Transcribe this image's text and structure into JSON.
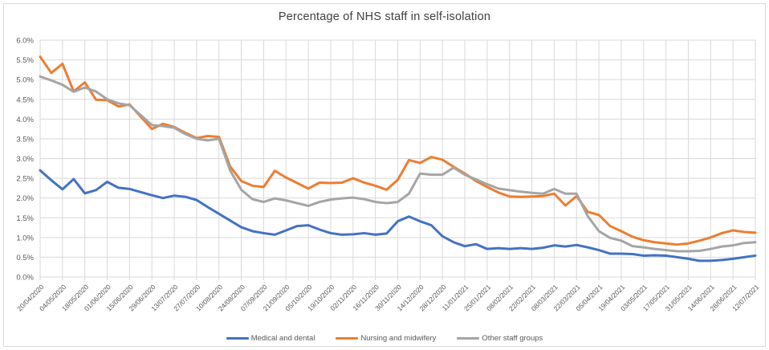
{
  "title": "Percentage of NHS staff in self-isolation",
  "colors": {
    "text": "#595959",
    "title_text": "#404040",
    "grid": "#D9D9D9",
    "frame_border": "#D9D9D9",
    "background": "#FFFFFF"
  },
  "chart_data": {
    "type": "line",
    "title": "Percentage of NHS staff in self-isolation",
    "xlabel": "",
    "ylabel": "",
    "ylim": [
      0,
      6
    ],
    "y_tick_step": 0.5,
    "y_tick_suffix": "%",
    "grid": true,
    "legend_position": "bottom",
    "n_points": 65,
    "points_per_labeled_tick": 2,
    "x_tick_labels": [
      "20/04/2020",
      "04/05/2020",
      "18/05/2020",
      "01/06/2020",
      "15/06/2020",
      "29/06/2020",
      "13/07/2020",
      "27/07/2020",
      "10/08/2020",
      "24/08/2020",
      "07/09/2020",
      "21/09/2020",
      "05/10/2020",
      "19/10/2020",
      "02/11/2020",
      "16/11/2020",
      "30/11/2020",
      "14/12/2020",
      "28/12/2020",
      "11/01/2021",
      "25/01/2021",
      "08/02/2021",
      "22/02/2021",
      "08/03/2021",
      "22/03/2021",
      "05/04/2021",
      "19/04/2021",
      "03/05/2021",
      "17/05/2021",
      "31/05/2021",
      "14/06/2021",
      "28/06/2021",
      "12/07/2021"
    ],
    "series": [
      {
        "name": "Medical and dental",
        "color": "#4472C4",
        "values": [
          2.7,
          2.45,
          2.22,
          2.48,
          2.12,
          2.2,
          2.41,
          2.26,
          2.23,
          2.15,
          2.07,
          2.0,
          2.06,
          2.03,
          1.95,
          1.77,
          1.6,
          1.43,
          1.26,
          1.16,
          1.11,
          1.07,
          1.18,
          1.29,
          1.31,
          1.2,
          1.11,
          1.07,
          1.08,
          1.11,
          1.07,
          1.1,
          1.41,
          1.53,
          1.41,
          1.31,
          1.03,
          0.88,
          0.78,
          0.83,
          0.71,
          0.73,
          0.71,
          0.73,
          0.71,
          0.74,
          0.8,
          0.77,
          0.81,
          0.75,
          0.68,
          0.59,
          0.59,
          0.58,
          0.54,
          0.55,
          0.54,
          0.5,
          0.46,
          0.41,
          0.41,
          0.43,
          0.46,
          0.5,
          0.54
        ]
      },
      {
        "name": "Nursing and midwifery",
        "color": "#ED7D31",
        "values": [
          5.58,
          5.17,
          5.4,
          4.7,
          4.93,
          4.49,
          4.48,
          4.32,
          4.37,
          4.06,
          3.75,
          3.88,
          3.8,
          3.65,
          3.52,
          3.57,
          3.55,
          2.8,
          2.43,
          2.31,
          2.28,
          2.69,
          2.52,
          2.38,
          2.24,
          2.39,
          2.38,
          2.39,
          2.5,
          2.39,
          2.31,
          2.21,
          2.46,
          2.96,
          2.89,
          3.04,
          2.97,
          2.79,
          2.62,
          2.43,
          2.28,
          2.14,
          2.04,
          2.03,
          2.04,
          2.05,
          2.11,
          1.81,
          2.05,
          1.65,
          1.57,
          1.29,
          1.16,
          1.02,
          0.93,
          0.88,
          0.85,
          0.82,
          0.85,
          0.92,
          1.0,
          1.11,
          1.18,
          1.14,
          1.12
        ]
      },
      {
        "name": "Other staff groups",
        "color": "#A5A5A5",
        "values": [
          5.08,
          4.98,
          4.87,
          4.69,
          4.8,
          4.7,
          4.5,
          4.4,
          4.35,
          4.1,
          3.85,
          3.82,
          3.78,
          3.62,
          3.5,
          3.46,
          3.5,
          2.7,
          2.21,
          1.97,
          1.9,
          1.99,
          1.94,
          1.87,
          1.8,
          1.9,
          1.96,
          1.99,
          2.01,
          1.97,
          1.9,
          1.87,
          1.9,
          2.11,
          2.62,
          2.59,
          2.59,
          2.77,
          2.59,
          2.47,
          2.35,
          2.24,
          2.2,
          2.16,
          2.13,
          2.11,
          2.23,
          2.11,
          2.11,
          1.54,
          1.16,
          0.99,
          0.92,
          0.78,
          0.75,
          0.71,
          0.68,
          0.65,
          0.65,
          0.66,
          0.71,
          0.77,
          0.8,
          0.86,
          0.88
        ]
      }
    ]
  }
}
